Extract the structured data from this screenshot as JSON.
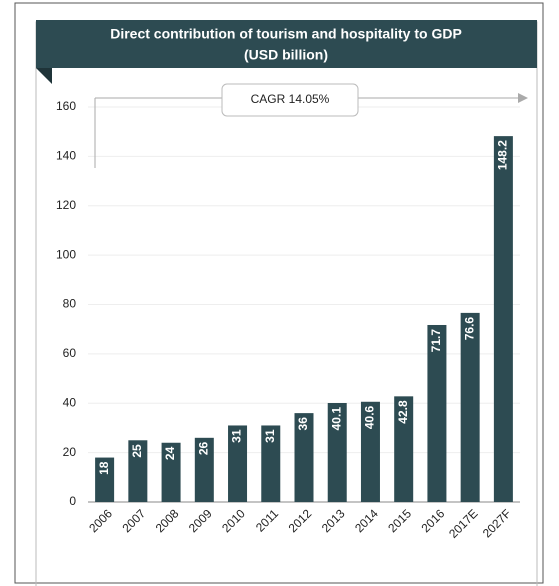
{
  "chart_data": {
    "type": "bar",
    "title": "Direct contribution of tourism and hospitality to GDP",
    "subtitle": "(USD billion)",
    "annotation": "CAGR 14.05%",
    "categories": [
      "2006",
      "2007",
      "2008",
      "2009",
      "2010",
      "2011",
      "2012",
      "2013",
      "2014",
      "2015",
      "2016",
      "2017E",
      "2027F"
    ],
    "values": [
      18,
      25,
      24,
      26,
      31,
      31,
      36,
      40.1,
      40.6,
      42.8,
      71.7,
      76.6,
      148.2
    ],
    "color": "#2d4b52",
    "ylim": [
      0,
      160
    ],
    "yticks": [
      0,
      20,
      40,
      60,
      80,
      100,
      120,
      140,
      160
    ],
    "grid": true
  }
}
